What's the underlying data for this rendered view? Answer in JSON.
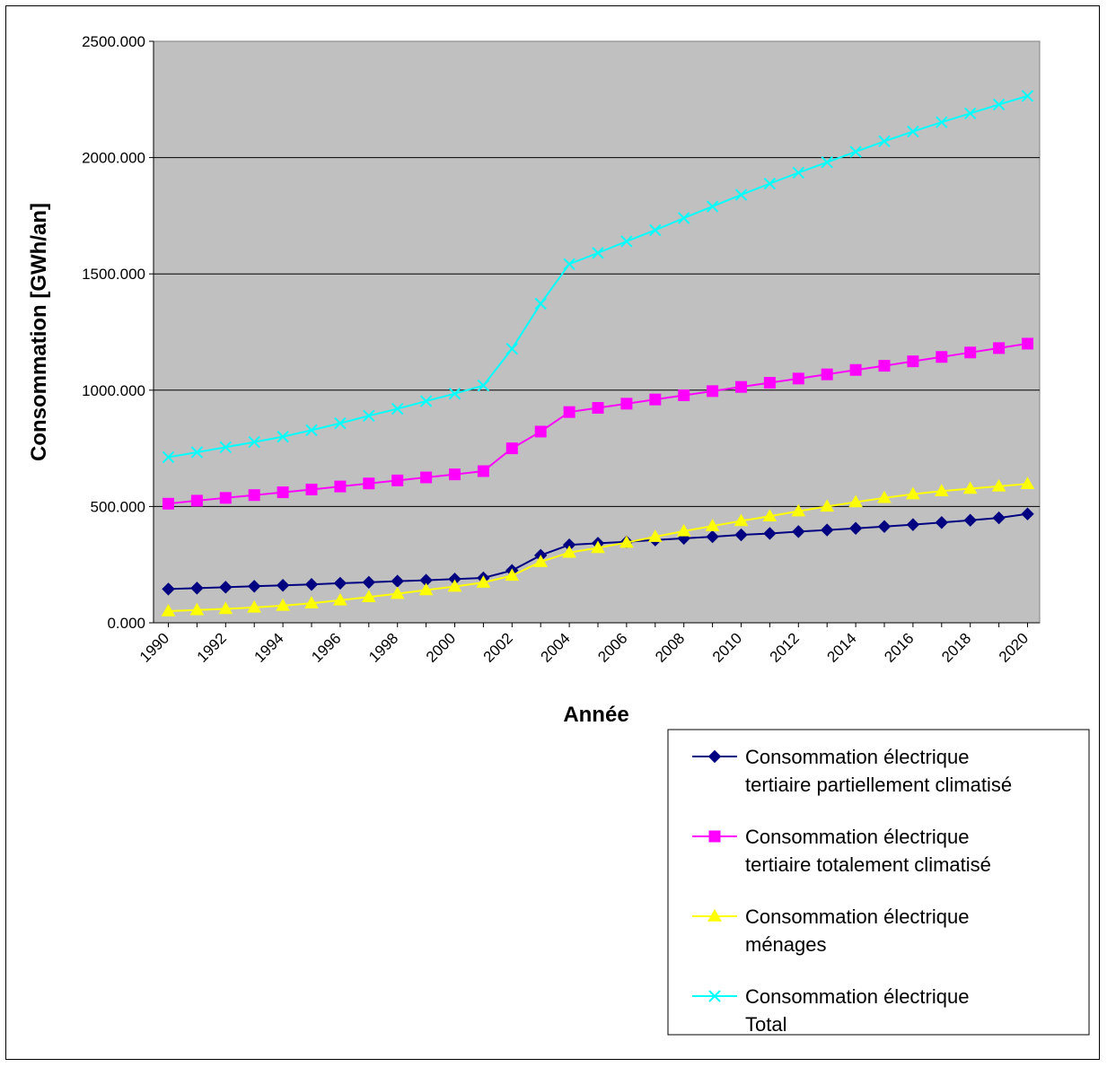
{
  "chart_data": {
    "type": "line",
    "title": "",
    "xlabel": "Année",
    "ylabel": "Consommation [GWh/an]",
    "ylim": [
      0,
      2500
    ],
    "yticks": [
      "0.000",
      "500.000",
      "1000.000",
      "1500.000",
      "2000.000",
      "2500.000"
    ],
    "ytick_values": [
      0,
      500,
      1000,
      1500,
      2000,
      2500
    ],
    "xtick_labels": [
      "1990",
      "1992",
      "1994",
      "1996",
      "1998",
      "2000",
      "2002",
      "2004",
      "2006",
      "2008",
      "2010",
      "2012",
      "2014",
      "2016",
      "2018",
      "2020"
    ],
    "x": [
      1990,
      1991,
      1992,
      1993,
      1994,
      1995,
      1996,
      1997,
      1998,
      1999,
      2000,
      2001,
      2002,
      2003,
      2004,
      2005,
      2006,
      2007,
      2008,
      2009,
      2010,
      2011,
      2012,
      2013,
      2014,
      2015,
      2016,
      2017,
      2018,
      2019,
      2020
    ],
    "grid": true,
    "plot_background": "#C0C0C0",
    "legend_position": "bottom-right",
    "series": [
      {
        "name": "Consommation électrique tertiaire partiellement climatisé",
        "legend_lines": [
          "Consommation électrique",
          "tertiaire partiellement climatisé"
        ],
        "color": "#000080",
        "marker": "diamond",
        "values": [
          145,
          149,
          153,
          157,
          161,
          165,
          170,
          174,
          179,
          183,
          188,
          193,
          225,
          290,
          335,
          342,
          348,
          356,
          363,
          370,
          378,
          384,
          392,
          399,
          406,
          414,
          422,
          431,
          441,
          451,
          468
        ]
      },
      {
        "name": "Consommation électrique tertiaire totalement climatisé",
        "legend_lines": [
          "Consommation électrique",
          "tertiaire totalement climatisé"
        ],
        "color": "#FF00FF",
        "marker": "square",
        "values": [
          512,
          525,
          537,
          549,
          561,
          573,
          586,
          599,
          612,
          625,
          638,
          652,
          750,
          822,
          906,
          924,
          942,
          960,
          978,
          996,
          1014,
          1032,
          1050,
          1068,
          1087,
          1105,
          1124,
          1143,
          1162,
          1181,
          1200
        ]
      },
      {
        "name": "Consommation électrique ménages",
        "legend_lines": [
          "Consommation électrique",
          "ménages"
        ],
        "color": "#FFFF00",
        "marker": "triangle",
        "values": [
          50,
          55,
          60,
          66,
          74,
          84,
          97,
          111,
          125,
          141,
          156,
          173,
          203,
          262,
          302,
          322,
          345,
          370,
          394,
          416,
          438,
          458,
          480,
          500,
          519,
          537,
          553,
          566,
          577,
          587,
          597
        ]
      },
      {
        "name": "Consommation électrique Total",
        "legend_lines": [
          "Consommation électrique",
          "Total"
        ],
        "color": "#00FFFF",
        "marker": "x",
        "values": [
          712,
          733,
          755,
          777,
          800,
          828,
          858,
          890,
          920,
          953,
          985,
          1020,
          1178,
          1372,
          1542,
          1590,
          1640,
          1688,
          1740,
          1790,
          1840,
          1888,
          1935,
          1980,
          2025,
          2070,
          2112,
          2152,
          2190,
          2228,
          2265
        ]
      }
    ]
  }
}
